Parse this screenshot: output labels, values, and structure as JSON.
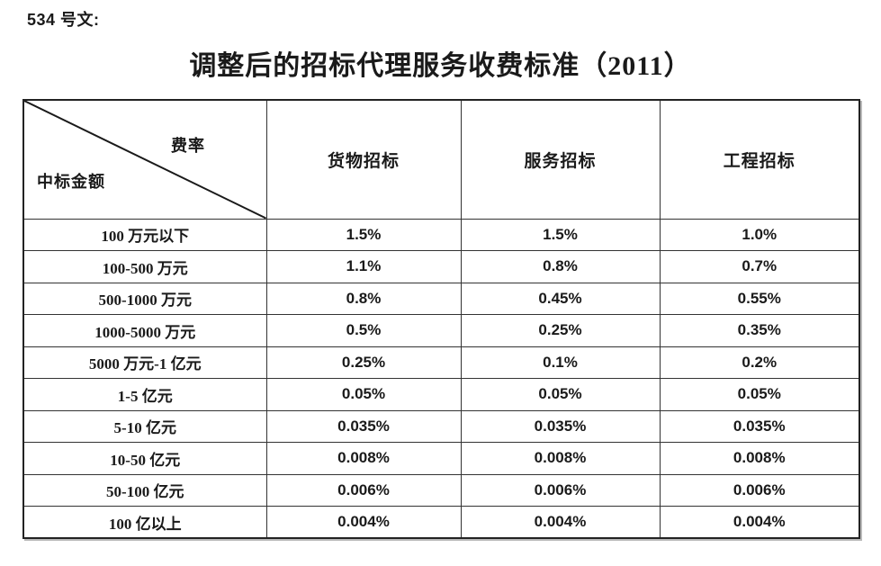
{
  "doc_ref": "534 号文:",
  "title": "调整后的招标代理服务收费标准（2011）",
  "table": {
    "corner": {
      "top_right": "费率",
      "bottom_left": "中标金额"
    },
    "columns": [
      "货物招标",
      "服务招标",
      "工程招标"
    ],
    "rows": [
      {
        "label": "100 万元以下",
        "values": [
          "1.5%",
          "1.5%",
          "1.0%"
        ]
      },
      {
        "label": "100-500 万元",
        "values": [
          "1.1%",
          "0.8%",
          "0.7%"
        ]
      },
      {
        "label": "500-1000 万元",
        "values": [
          "0.8%",
          "0.45%",
          "0.55%"
        ]
      },
      {
        "label": "1000-5000 万元",
        "values": [
          "0.5%",
          "0.25%",
          "0.35%"
        ]
      },
      {
        "label": "5000 万元-1 亿元",
        "values": [
          "0.25%",
          "0.1%",
          "0.2%"
        ]
      },
      {
        "label": "1-5 亿元",
        "values": [
          "0.05%",
          "0.05%",
          "0.05%"
        ]
      },
      {
        "label": "5-10 亿元",
        "values": [
          "0.035%",
          "0.035%",
          "0.035%"
        ]
      },
      {
        "label": "10-50 亿元",
        "values": [
          "0.008%",
          "0.008%",
          "0.008%"
        ]
      },
      {
        "label": "50-100 亿元",
        "values": [
          "0.006%",
          "0.006%",
          "0.006%"
        ]
      },
      {
        "label": "100 亿以上",
        "values": [
          "0.004%",
          "0.004%",
          "0.004%"
        ]
      }
    ]
  },
  "colors": {
    "text": "#1a1a1a",
    "border": "#333333",
    "shadow": "#b9b9b9",
    "background": "#ffffff"
  }
}
